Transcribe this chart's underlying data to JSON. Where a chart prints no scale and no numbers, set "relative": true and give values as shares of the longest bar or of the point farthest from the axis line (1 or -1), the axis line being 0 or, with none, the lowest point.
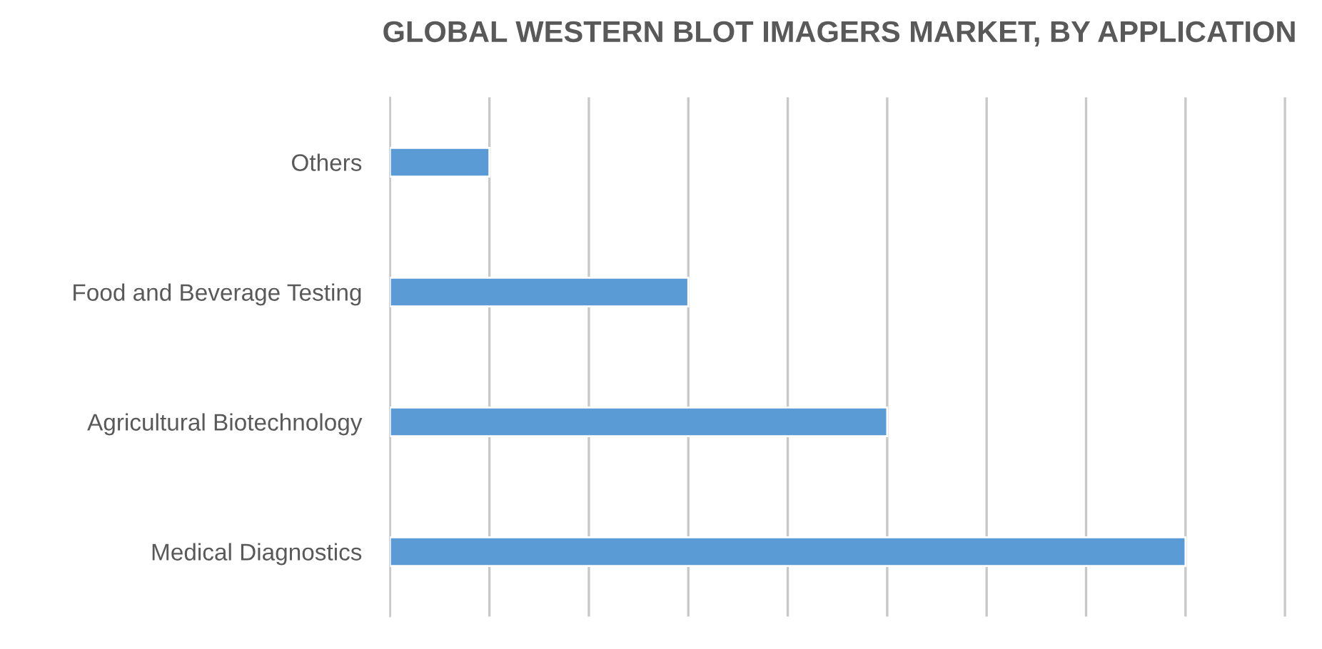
{
  "chart_data": {
    "type": "bar",
    "title": "GLOBAL WESTERN BLOT IMAGERS MARKET, BY APPLICATION",
    "orientation": "horizontal",
    "relative": true,
    "grid": "x",
    "categories": [
      "Others",
      "Food and Beverage Testing",
      "Agricultural Biotechnology",
      "Medical Diagnostics"
    ],
    "values": [
      0.125,
      0.375,
      0.625,
      1
    ],
    "color": "#5b9bd5"
  }
}
